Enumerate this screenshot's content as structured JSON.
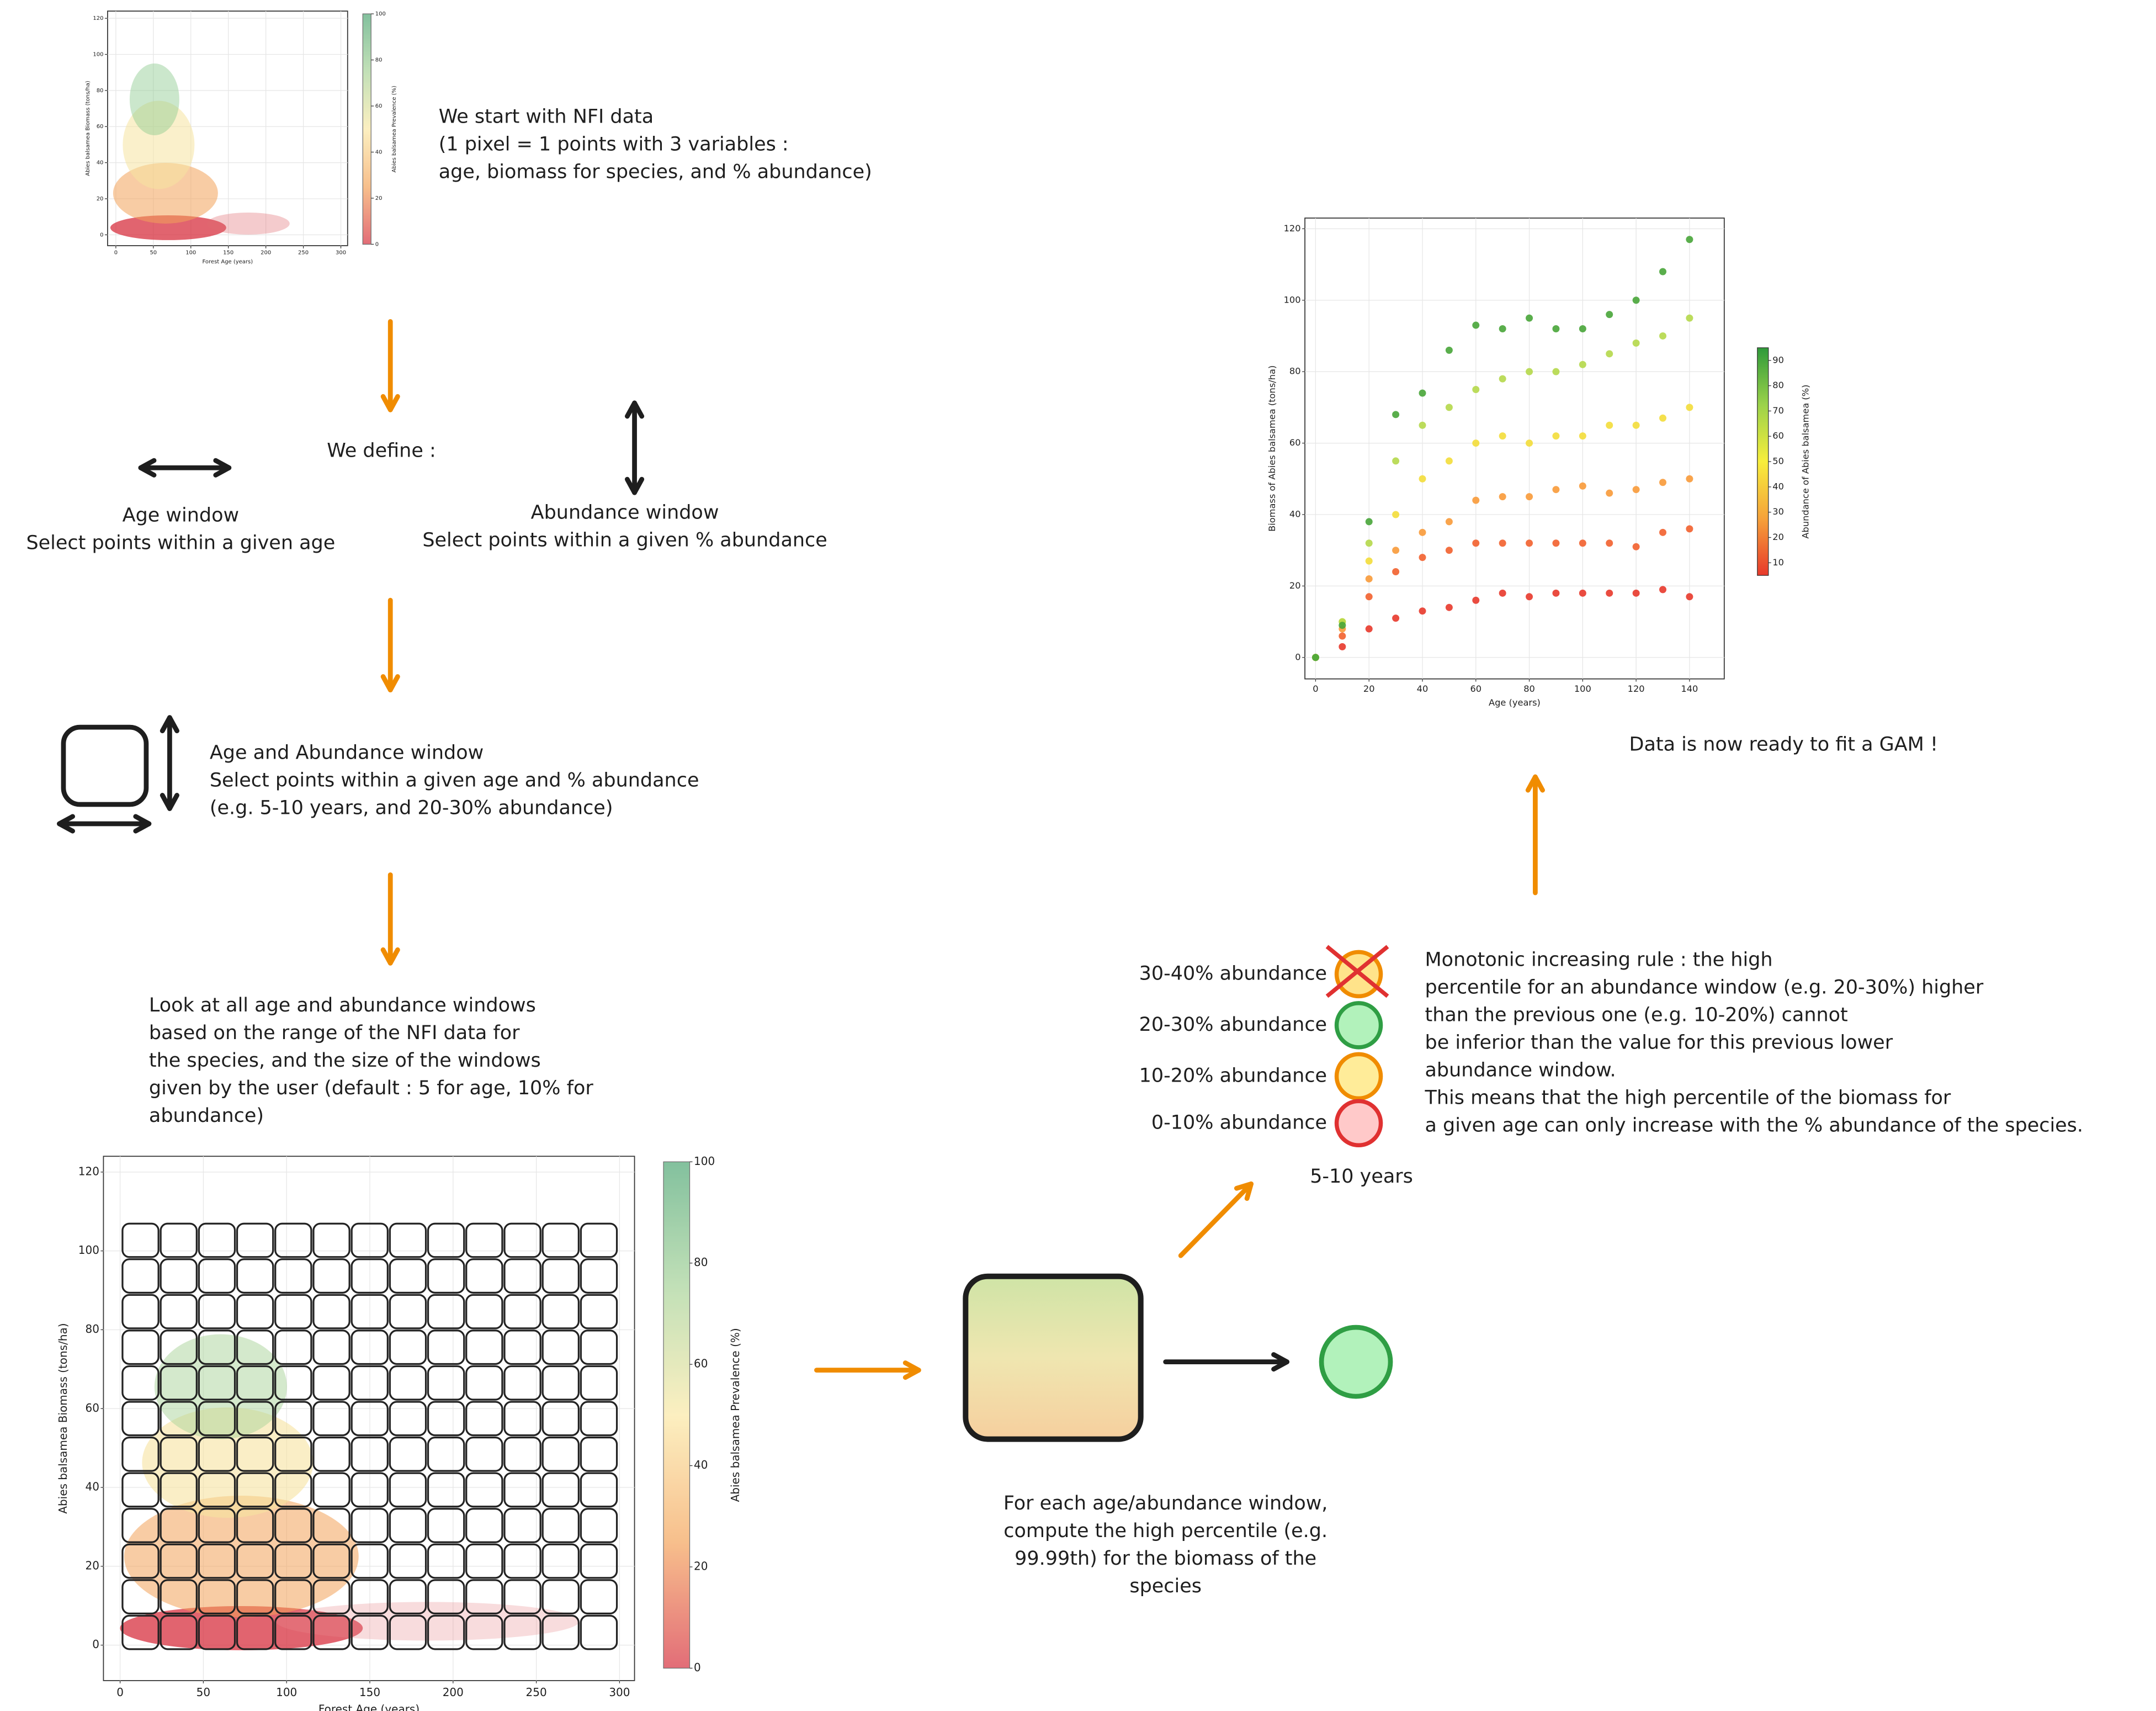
{
  "intro": {
    "lines": [
      "We start with NFI data",
      "(1 pixel = 1 points with 3 variables :",
      "age, biomass for species, and % abundance)"
    ]
  },
  "define": {
    "title": "We define :",
    "age_window": {
      "title": "Age window",
      "desc": "Select points within a given age"
    },
    "abundance_window": {
      "title": "Abundance window",
      "desc": "Select points within a given % abundance"
    }
  },
  "combined_window": {
    "lines": [
      "Age and Abundance window",
      "Select points within a given age and % abundance",
      "(e.g. 5-10 years, and 20-30% abundance)"
    ]
  },
  "all_windows": {
    "lines": [
      "Look at all age and abundance windows",
      "based on the range of the NFI data for",
      "the species, and the size of the windows",
      "given by the user (default : 5 for age, 10% for",
      "abundance)"
    ]
  },
  "percentile": {
    "lines": [
      "For each age/abundance window,",
      "compute the high percentile (e.g.",
      "99.99th) for the biomass of the",
      "species"
    ]
  },
  "monotonic": {
    "windows": [
      "30-40% abundance",
      "20-30% abundance",
      "10-20% abundance",
      "0-10% abundance"
    ],
    "age_label": "5-10 years",
    "lines": [
      "Monotonic increasing rule : the high",
      "percentile for an abundance window (e.g. 20-30%) higher",
      "than the previous one (e.g. 10-20%) cannot",
      "be inferior than the value for this previous lower",
      "abundance window.",
      "This means that the high percentile of the biomass for",
      "a given age can only increase with the % abundance of the species."
    ]
  },
  "gam": {
    "text": "Data is now ready to fit a GAM !"
  },
  "chart_data": [
    {
      "type": "scatter",
      "x_label": "Forest Age (years)",
      "y_label": "Abies balsamea Biomass (tons/ha)",
      "colorbar_label": "Abies balsamea Prevalence (%)",
      "xlim": [
        -11,
        309
      ],
      "ylim": [
        -6,
        124
      ],
      "xticks": [
        0,
        50,
        100,
        150,
        200,
        250,
        300
      ],
      "yticks": [
        0,
        20,
        40,
        60,
        80,
        100,
        120
      ],
      "clim": [
        0,
        100
      ],
      "cticks": [
        0,
        20,
        40,
        60,
        80,
        100
      ],
      "grid": true,
      "colormap": [
        "#d7303f",
        "#f5a55c",
        "#fbe9a6",
        "#a9d49a",
        "#4fa775"
      ]
    },
    {
      "type": "scatter",
      "x_label": "Forest Age (years)",
      "y_label": "Abies balsamea Biomass (tons/ha)",
      "colorbar_label": "Abies balsamea Prevalence (%)",
      "xlim": [
        -10,
        309
      ],
      "ylim": [
        -9,
        124
      ],
      "xticks": [
        0,
        50,
        100,
        150,
        200,
        250,
        300
      ],
      "yticks": [
        0,
        20,
        40,
        60,
        80,
        100,
        120
      ],
      "clim": [
        0,
        100
      ],
      "cticks": [
        0,
        20,
        40,
        60,
        80,
        100
      ],
      "grid": true,
      "colormap": [
        "#d7303f",
        "#f5a55c",
        "#fbe9a6",
        "#a9d49a",
        "#4fa775"
      ]
    },
    {
      "type": "scatter",
      "x_label": "Age (years)",
      "y_label": "Biomass of Abies balsamea (tons/ha)",
      "colorbar_label": "Abundance of Abies balsamea (%)",
      "xlim": [
        -4,
        153
      ],
      "ylim": [
        -6,
        123
      ],
      "xticks": [
        0,
        20,
        40,
        60,
        80,
        100,
        120,
        140
      ],
      "yticks": [
        0,
        20,
        40,
        60,
        80,
        100,
        120
      ],
      "clim": [
        5,
        95
      ],
      "cticks": [
        10,
        20,
        30,
        40,
        50,
        60,
        70,
        80,
        90
      ],
      "grid": true,
      "colormap": [
        "#e8392b",
        "#f6a23a",
        "#f7ee3c",
        "#9bd24a",
        "#2f9a3a"
      ],
      "x": [
        0,
        10,
        20,
        30,
        40,
        50,
        60,
        70,
        80,
        90,
        100,
        110,
        120,
        130,
        140
      ],
      "series": [
        {
          "color": "#e8392b",
          "values": [
            0,
            3,
            8,
            11,
            13,
            14,
            16,
            18,
            17,
            18,
            18,
            18,
            18,
            19,
            17
          ]
        },
        {
          "color": "#f2602e",
          "values": [
            0,
            6,
            17,
            24,
            28,
            30,
            32,
            32,
            32,
            32,
            32,
            32,
            31,
            35,
            36
          ]
        },
        {
          "color": "#f89a38",
          "values": [
            0,
            8,
            22,
            30,
            35,
            38,
            44,
            45,
            45,
            47,
            48,
            46,
            47,
            49,
            50
          ]
        },
        {
          "color": "#f3dd3a",
          "values": [
            0,
            10,
            27,
            40,
            50,
            55,
            60,
            62,
            60,
            62,
            62,
            65,
            65,
            67,
            70
          ]
        },
        {
          "color": "#b5d84a",
          "values": [
            0,
            10,
            32,
            55,
            65,
            70,
            75,
            78,
            80,
            80,
            82,
            85,
            88,
            90,
            95
          ]
        },
        {
          "color": "#48a538",
          "values": [
            0,
            9,
            38,
            68,
            74,
            86,
            93,
            92,
            95,
            92,
            92,
            96,
            100,
            108,
            117
          ]
        }
      ]
    }
  ]
}
